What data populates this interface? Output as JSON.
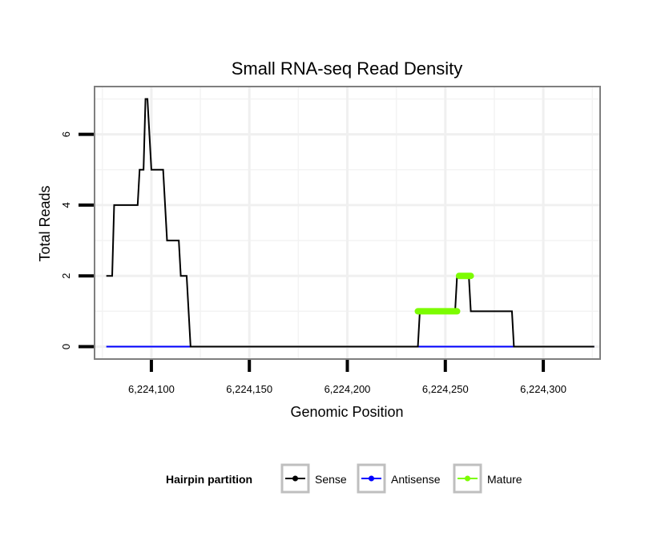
{
  "chart_data": {
    "type": "line",
    "title": "Small RNA-seq Read Density",
    "xlabel": "Genomic Position",
    "ylabel": "Total Reads",
    "xlim": [
      6224071,
      6224329
    ],
    "ylim": [
      -0.35,
      7.35
    ],
    "x_ticks": [
      6224100,
      6224150,
      6224200,
      6224250,
      6224300
    ],
    "x_tick_labels": [
      "6,224,100",
      "6,224,150",
      "6,224,200",
      "6,224,250",
      "6,224,300"
    ],
    "y_ticks": [
      0,
      2,
      4,
      6
    ],
    "y_tick_labels": [
      "0",
      "2",
      "4",
      "6"
    ],
    "grid": true,
    "legend_title": "Hairpin partition",
    "legend_position": "bottom",
    "series": [
      {
        "name": "Sense",
        "color": "#000000",
        "x": [
          6224077,
          6224080,
          6224081,
          6224093,
          6224094,
          6224096,
          6224097,
          6224098,
          6224099,
          6224100,
          6224101,
          6224106,
          6224107,
          6224108,
          6224114,
          6224115,
          6224118,
          6224119,
          6224120,
          6224236,
          6224237,
          6224255,
          6224256,
          6224262,
          6224263,
          6224284,
          6224285,
          6224326
        ],
        "y": [
          2,
          2,
          4,
          4,
          5,
          5,
          7,
          7,
          6,
          5,
          5,
          5,
          4,
          3,
          3,
          2,
          2,
          1,
          0,
          0,
          1,
          1,
          2,
          2,
          1,
          1,
          0,
          0
        ]
      },
      {
        "name": "Antisense",
        "color": "#0000ff",
        "x": [
          6224077,
          6224326
        ],
        "y": [
          0,
          0
        ]
      },
      {
        "name": "Mature",
        "color": "#7cfc00",
        "segments": [
          {
            "x": [
              6224236,
              6224256
            ],
            "y": [
              1,
              1
            ]
          },
          {
            "x": [
              6224257,
              6224263
            ],
            "y": [
              2,
              2
            ]
          }
        ]
      }
    ]
  }
}
